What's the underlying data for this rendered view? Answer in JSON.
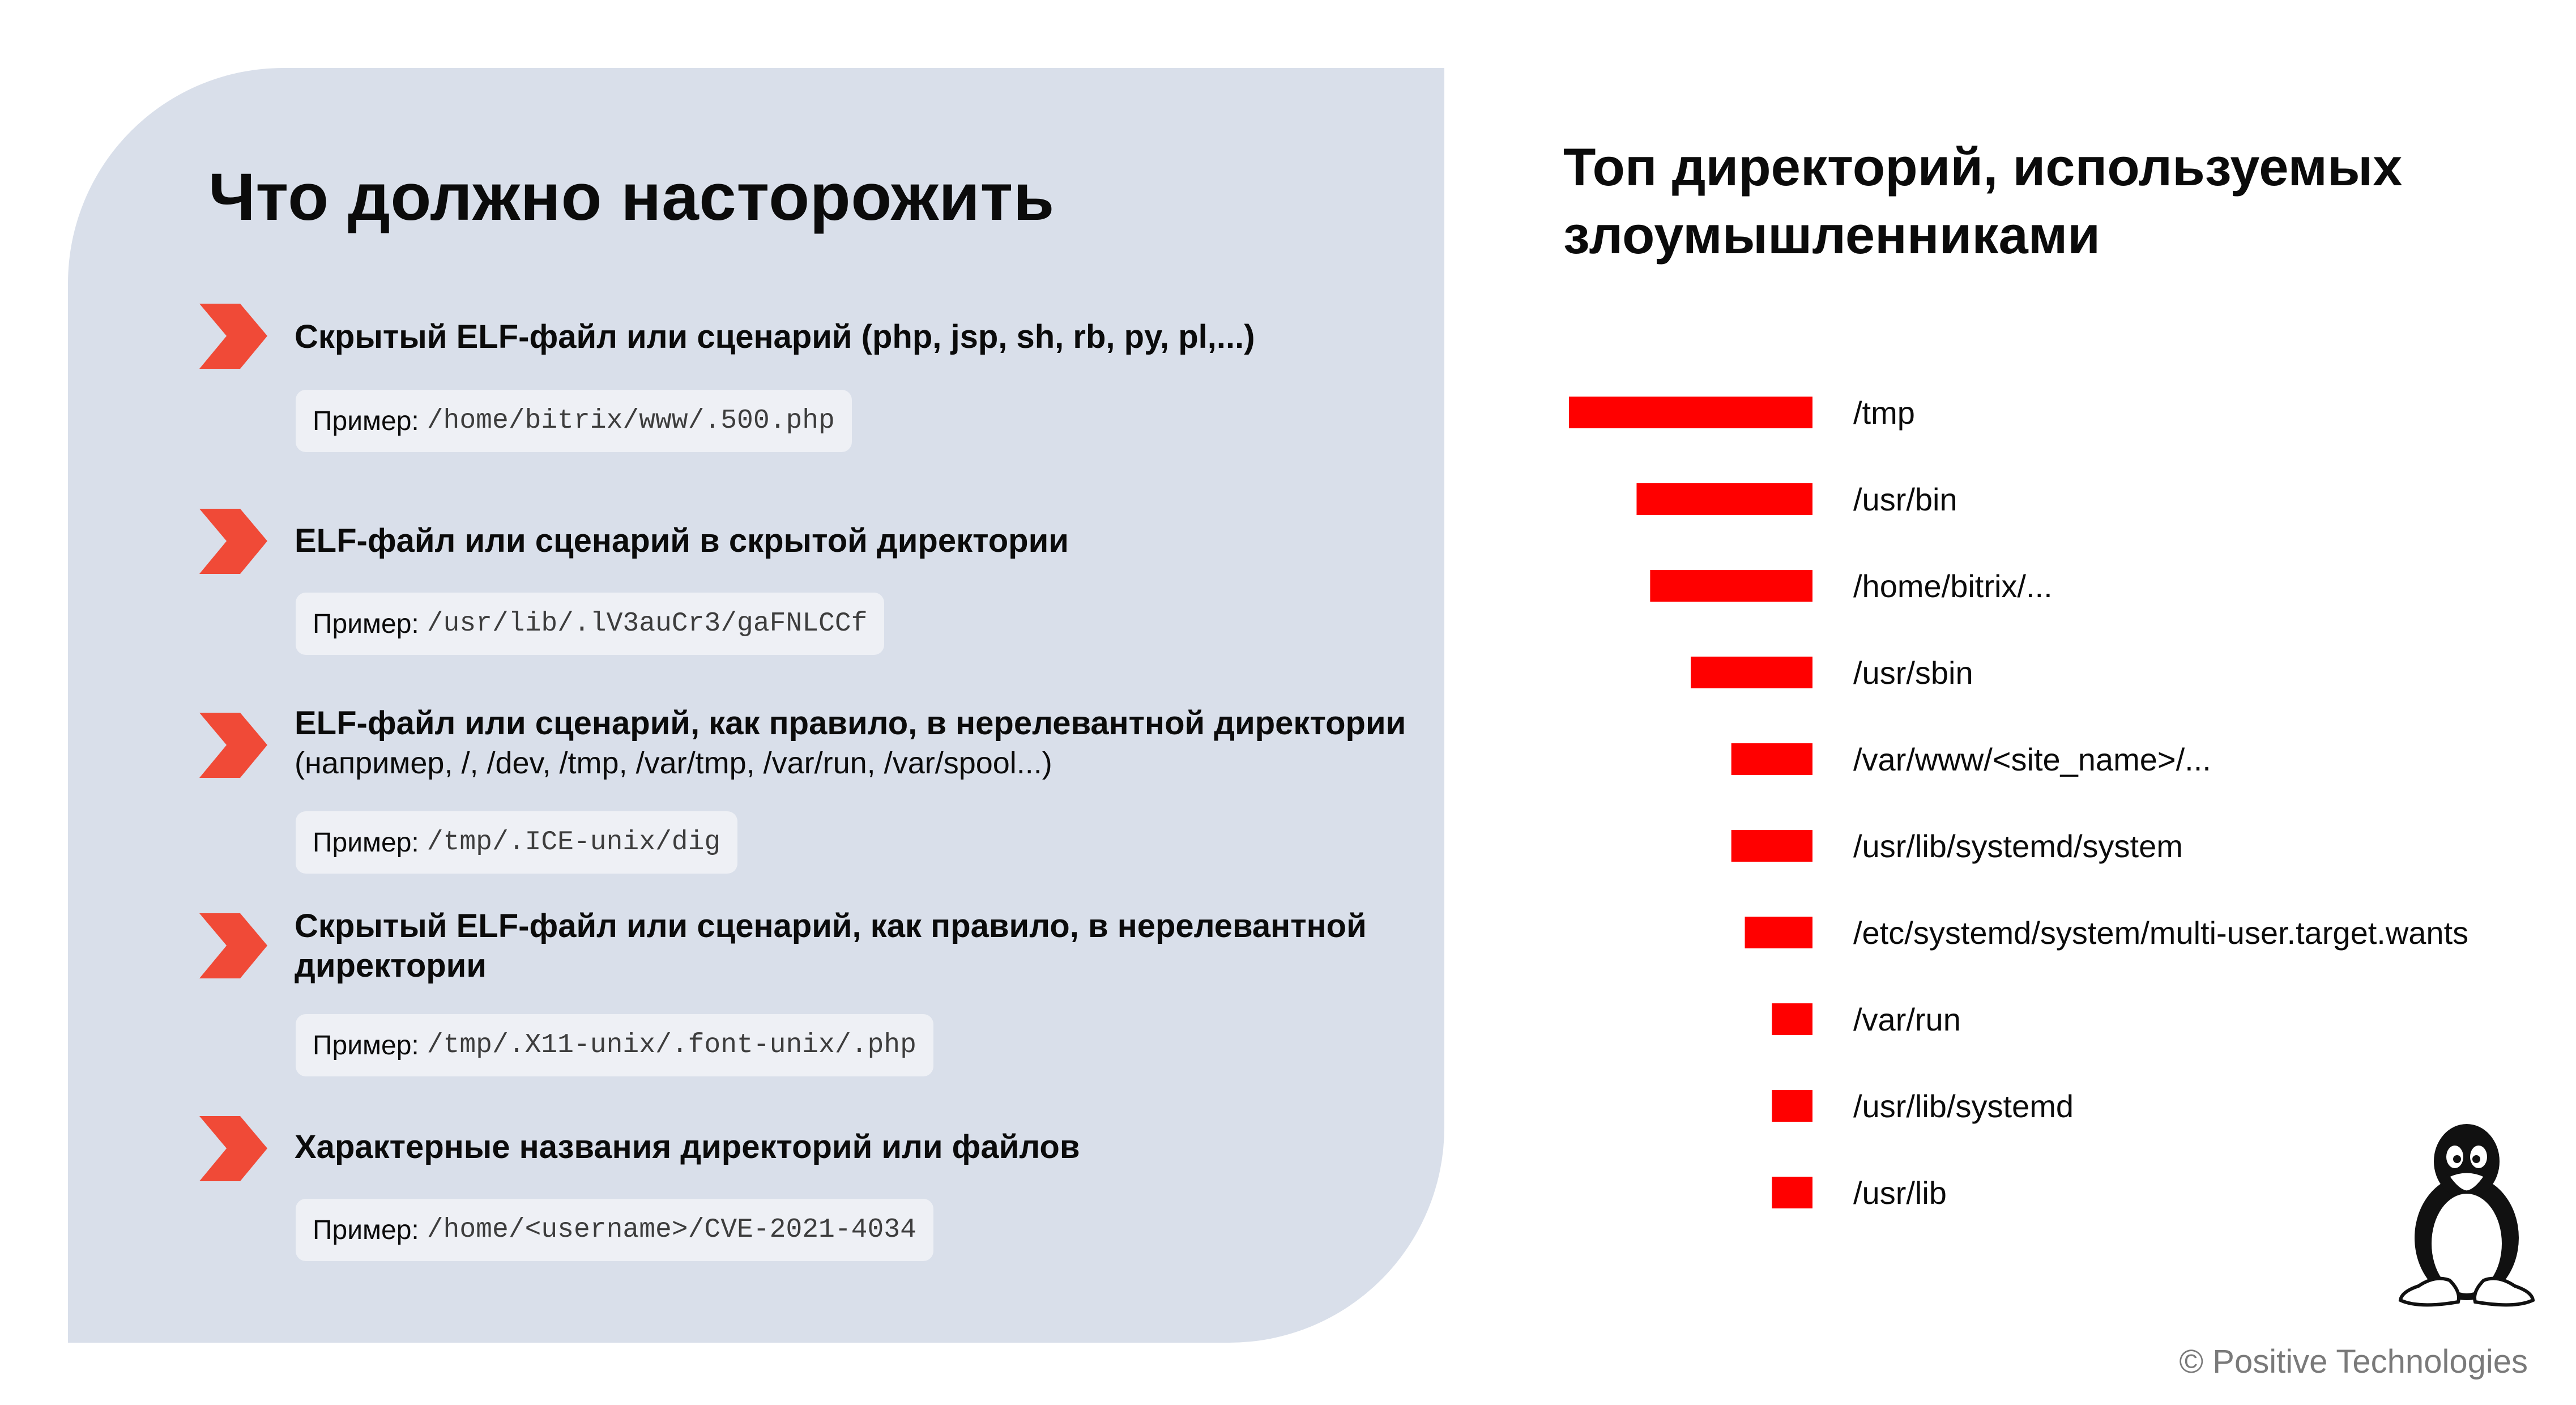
{
  "left_panel": {
    "title": "Что должно насторожить",
    "items": [
      {
        "title": "Скрытый ELF-файл или сценарий (php, jsp, sh, rb, py, pl,...)",
        "subtitle": "",
        "example_label": "Пример:",
        "example_path": "/home/bitrix/www/.500.php"
      },
      {
        "title": "ELF-файл или сценарий в скрытой директории",
        "subtitle": "",
        "example_label": "Пример:",
        "example_path": "/usr/lib/.lV3auCr3/gaFNLCCf"
      },
      {
        "title": "ELF-файл или сценарий, как правило, в нерелевантной директории",
        "subtitle": "(например, /, /dev, /tmp, /var/tmp, /var/run, /var/spool...)",
        "example_label": "Пример:",
        "example_path": "/tmp/.ICE-unix/dig"
      },
      {
        "title": "Скрытый ELF-файл или сценарий, как правило, в нерелевантной директории",
        "subtitle": "",
        "example_label": "Пример:",
        "example_path": "/tmp/.X11-unix/.font-unix/.php"
      },
      {
        "title": "Характерные названия директорий или файлов",
        "subtitle": "",
        "example_label": "Пример:",
        "example_path": "/home/<username>/CVE-2021-4034"
      }
    ],
    "colors": {
      "panel_background": "#d9dfea",
      "chevron": "#f04a37",
      "example_background": "#eef0f5"
    },
    "icons": [
      "chevron-right-icon"
    ]
  },
  "chart_data": {
    "type": "bar",
    "orientation": "horizontal",
    "title": "Топ директорий, используемых злоумышленниками",
    "categories": [
      "/tmp",
      "/usr/bin",
      "/home/bitrix/...",
      "/usr/sbin",
      "/var/www/<site_name>/...",
      "/usr/lib/systemd/system",
      "/etc/systemd/system/multi-user.target.wants",
      "/var/run",
      "/usr/lib/systemd",
      "/usr/lib"
    ],
    "values": [
      18,
      13,
      12,
      9,
      6,
      6,
      5,
      3,
      3,
      3
    ],
    "bar_direction": "right-to-left",
    "axis_visible": false,
    "grid": false,
    "legend": "none",
    "bar_color": "#ff0000"
  },
  "footer": {
    "copyright": "© Positive Technologies"
  },
  "logo": {
    "icon": "tux-penguin-icon"
  }
}
